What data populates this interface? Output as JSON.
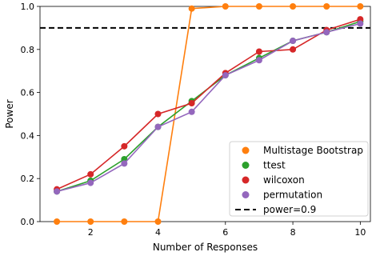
{
  "chart_data": {
    "type": "line",
    "title": "",
    "xlabel": "Number of Responses",
    "ylabel": "Power",
    "xlim": [
      0.5,
      10.3
    ],
    "ylim": [
      0.0,
      1.0
    ],
    "x_ticks": [
      2,
      4,
      6,
      8,
      10
    ],
    "y_ticks": [
      0.0,
      0.2,
      0.4,
      0.6,
      0.8,
      1.0
    ],
    "x": [
      1,
      2,
      3,
      4,
      5,
      6,
      7,
      8,
      9,
      10
    ],
    "grid": false,
    "legend_position": "lower-right",
    "series": [
      {
        "name": "Multistage Bootstrap",
        "color": "#ff7f0e",
        "values": [
          0.0,
          0.0,
          0.0,
          0.0,
          0.99,
          1.0,
          1.0,
          1.0,
          1.0,
          1.0
        ]
      },
      {
        "name": "ttest",
        "color": "#2ca02c",
        "values": [
          0.14,
          0.19,
          0.29,
          0.44,
          0.56,
          0.68,
          0.76,
          0.84,
          0.88,
          0.93
        ]
      },
      {
        "name": "wilcoxon",
        "color": "#d62728",
        "values": [
          0.15,
          0.22,
          0.35,
          0.5,
          0.55,
          0.69,
          0.79,
          0.8,
          0.89,
          0.94
        ]
      },
      {
        "name": "permutation",
        "color": "#9467bd",
        "values": [
          0.14,
          0.18,
          0.27,
          0.44,
          0.51,
          0.68,
          0.75,
          0.84,
          0.88,
          0.92
        ]
      }
    ],
    "reference_line": {
      "name": "power=0.9",
      "y": 0.9,
      "color": "#000000",
      "style": "dashed"
    }
  }
}
